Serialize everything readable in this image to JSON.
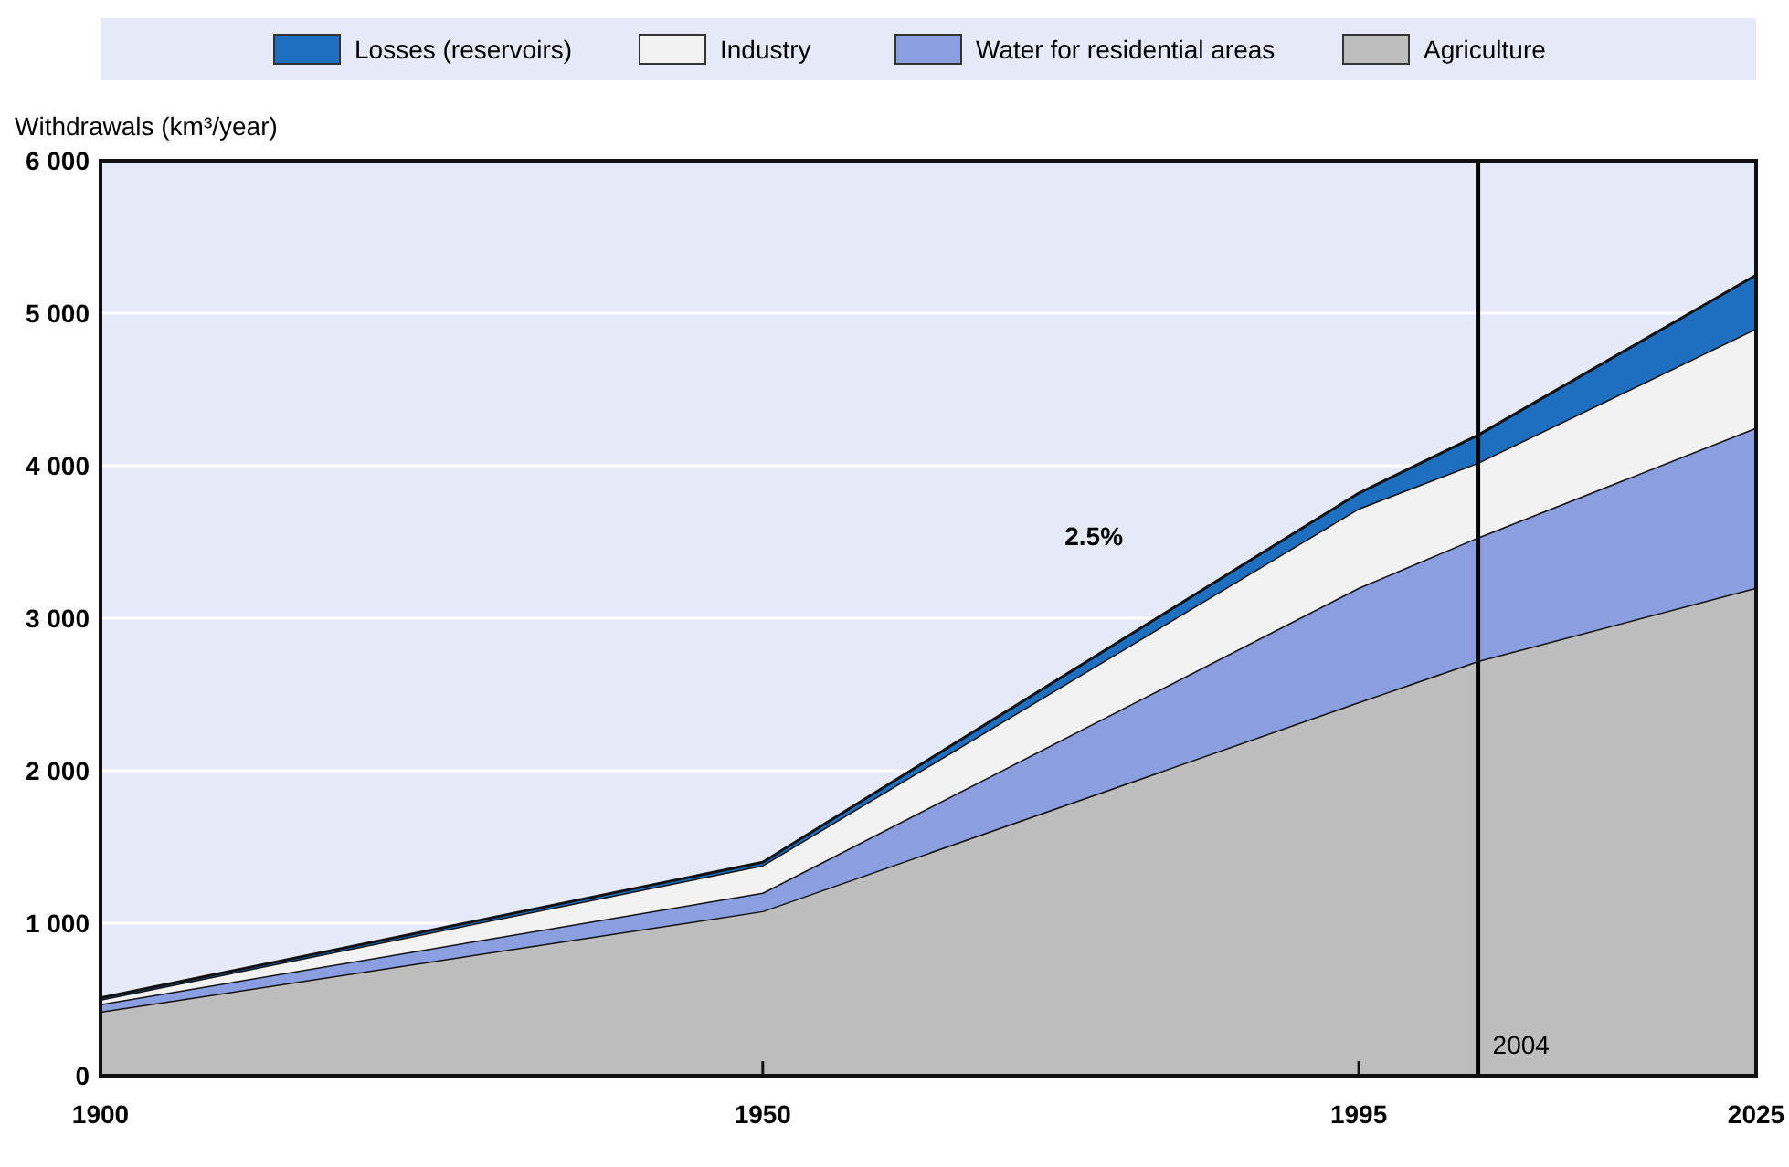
{
  "chart_data": {
    "type": "area",
    "stacked": true,
    "ylabel": "Withdrawals (km³/year)",
    "x": [
      1900,
      1950,
      1995,
      2004,
      2025
    ],
    "xlim": [
      1900,
      2025
    ],
    "xticks": [
      1900,
      1950,
      1995,
      2025
    ],
    "ylim": [
      0,
      6000
    ],
    "yticks": [
      0,
      {
        "value": 1000,
        "label": "1 000"
      },
      {
        "value": 2000,
        "label": "2 000"
      },
      {
        "value": 3000,
        "label": "3 000"
      },
      {
        "value": 4000,
        "label": "4 000"
      },
      {
        "value": 5000,
        "label": "5 000"
      },
      {
        "value": 6000,
        "label": "6 000"
      }
    ],
    "grid": "y",
    "legend": "top",
    "series": [
      {
        "name": "Agriculture",
        "color": "#bdbdbd",
        "values": [
          420,
          1080,
          2450,
          2720,
          3200
        ]
      },
      {
        "name": "Water for residential areas",
        "color": "#8a9ee0",
        "values": [
          50,
          120,
          750,
          810,
          1050
        ]
      },
      {
        "name": "Industry",
        "color": "#f2f2f2",
        "values": [
          30,
          180,
          520,
          490,
          650
        ]
      },
      {
        "name": "Losses (reservoirs)",
        "color": "#1f6fc0",
        "values": [
          10,
          20,
          100,
          180,
          350
        ]
      }
    ],
    "ref_lines": [
      {
        "axis": "x",
        "value": 2004,
        "label": "2004",
        "color": "#000000"
      }
    ],
    "annotations": [
      "2.5%"
    ]
  }
}
